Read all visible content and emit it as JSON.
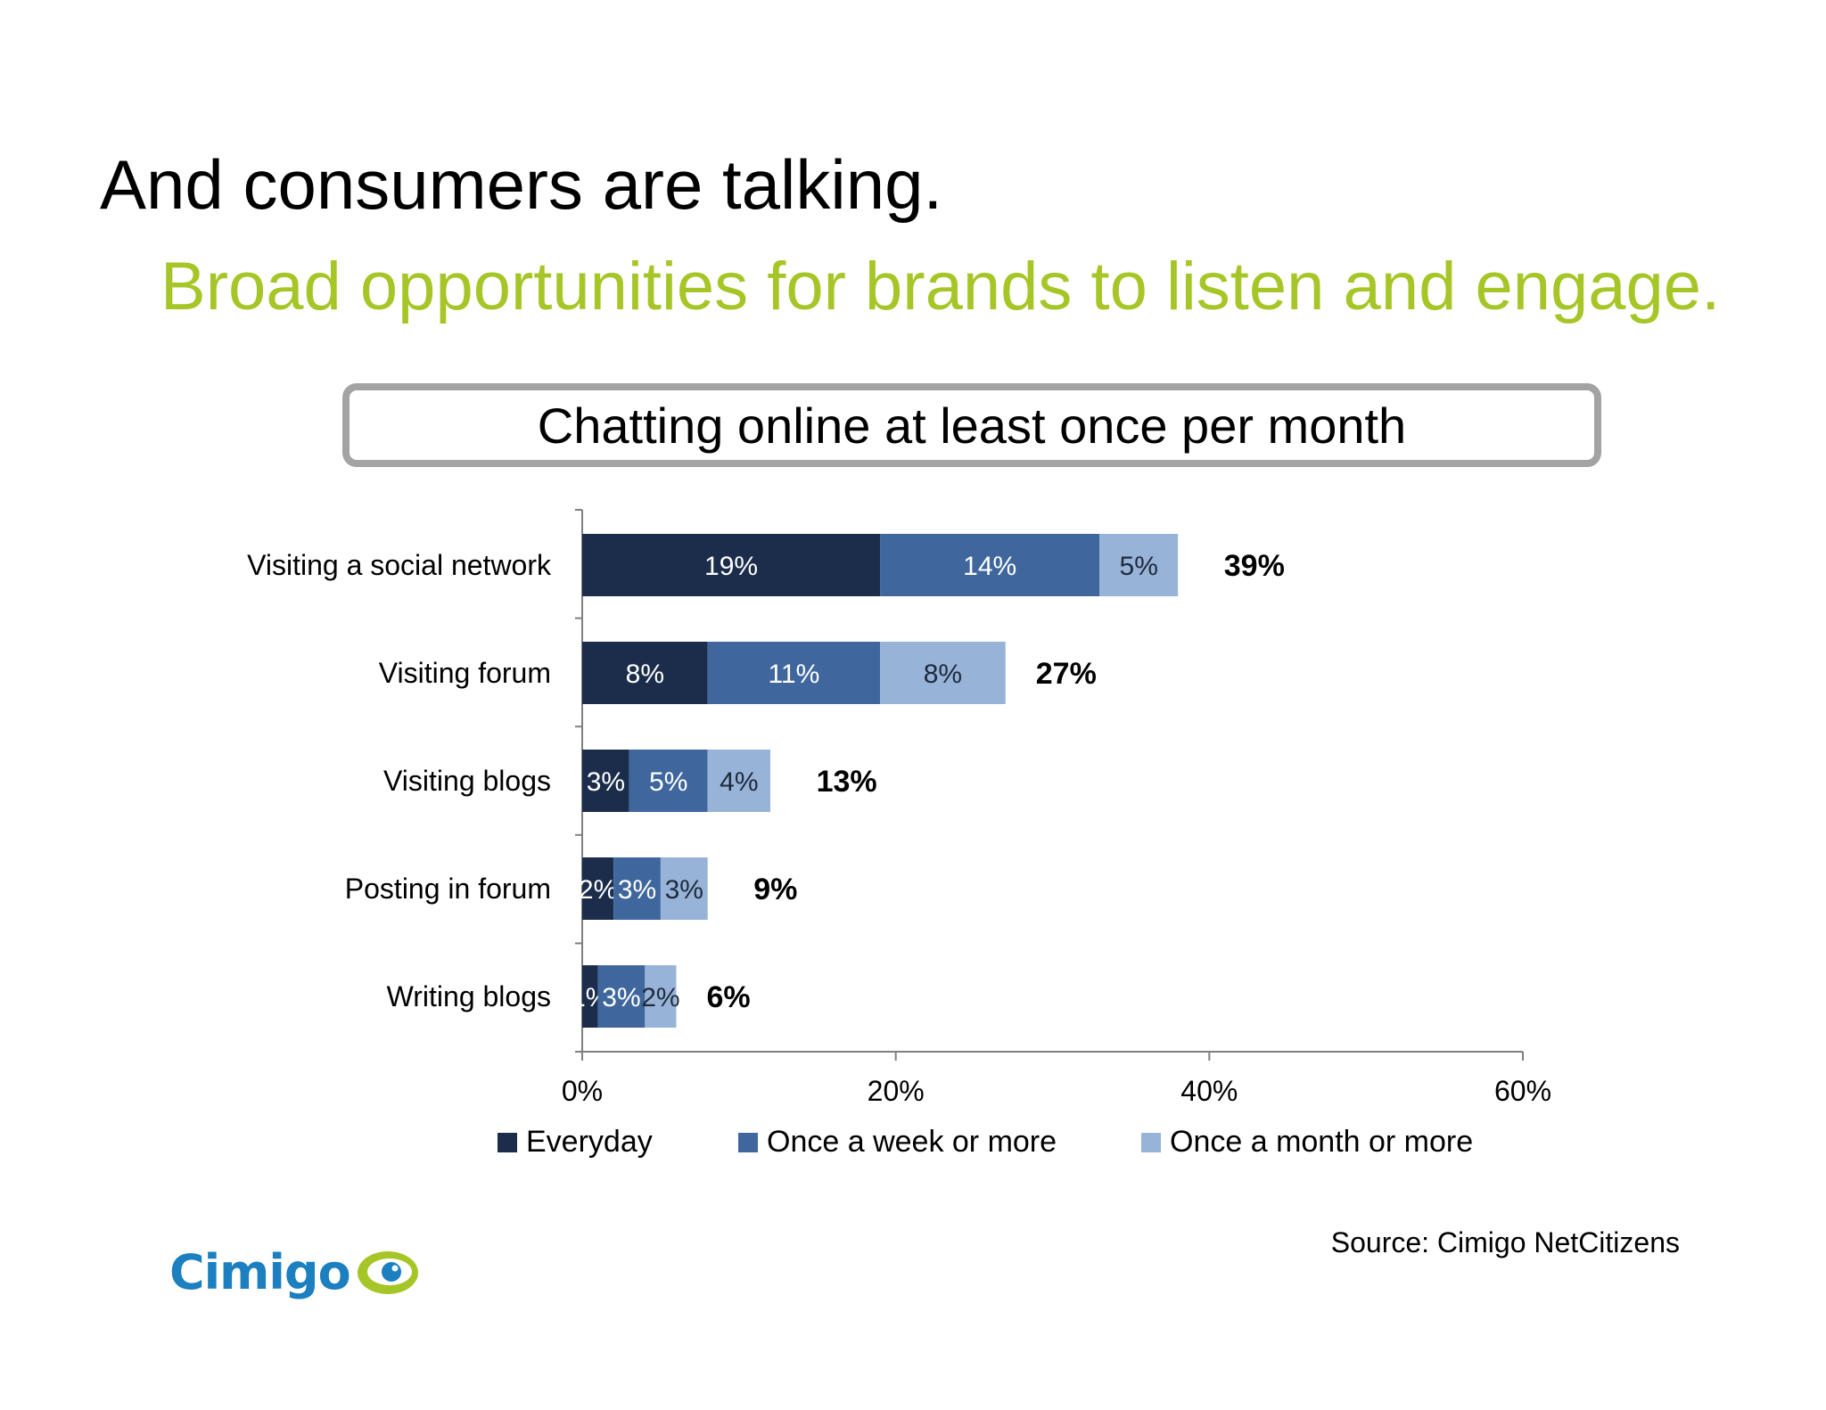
{
  "slide": {
    "title": "And consumers are talking.",
    "subtitle": "Broad opportunities for brands to listen and engage.",
    "source": "Source: Cimigo NetCitizens",
    "logo_text": "Cimigo"
  },
  "colors": {
    "everyday": "#1b2d4b",
    "weekly": "#3f679d",
    "monthly": "#98b3d8",
    "accent": "#a6c627",
    "logo": "#1b7fc0"
  },
  "chart_data": {
    "type": "bar",
    "orientation": "horizontal",
    "stacked": true,
    "title": "Chatting online at least once per month",
    "categories": [
      "Visiting a social network",
      "Visiting forum",
      "Visiting blogs",
      "Posting in forum",
      "Writing blogs"
    ],
    "series": [
      {
        "name": "Everyday",
        "values": [
          19,
          8,
          3,
          2,
          1
        ],
        "labels": [
          "19%",
          "8%",
          "3%",
          "2%",
          "1%"
        ]
      },
      {
        "name": "Once a week or more",
        "values": [
          14,
          11,
          5,
          3,
          3
        ],
        "labels": [
          "14%",
          "11%",
          "5%",
          "3%",
          "3%"
        ]
      },
      {
        "name": "Once a month or more",
        "values": [
          5,
          8,
          4,
          3,
          2
        ],
        "labels": [
          "5%",
          "8%",
          "4%",
          "3%",
          "2%"
        ]
      }
    ],
    "totals": [
      "39%",
      "27%",
      "13%",
      "9%",
      "6%"
    ],
    "total_values": [
      39,
      27,
      13,
      9,
      6
    ],
    "xlim": [
      0,
      60
    ],
    "x_ticks": [
      0,
      20,
      40,
      60
    ],
    "x_tick_labels": [
      "0%",
      "20%",
      "40%",
      "60%"
    ],
    "legend_position": "bottom",
    "grid": false
  }
}
